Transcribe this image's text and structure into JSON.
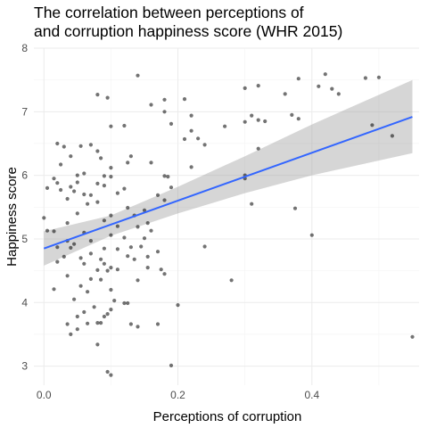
{
  "chart_data": {
    "type": "scatter",
    "title_lines": [
      "The correlation between perceptions of",
      "and corruption happiness score (WHR 2015)"
    ],
    "xlabel": "Perceptions of corruption",
    "ylabel": "Happiness score",
    "xlim": [
      -0.015,
      0.56
    ],
    "ylim": [
      2.7,
      8.0
    ],
    "x_ticks": [
      0.0,
      0.2,
      0.4
    ],
    "x_tick_labels": [
      "0.0",
      "0.2",
      "0.4"
    ],
    "y_ticks": [
      3,
      4,
      5,
      6,
      7,
      8
    ],
    "y_tick_labels": [
      "3",
      "4",
      "5",
      "6",
      "7",
      "8"
    ],
    "grid": true,
    "colors": {
      "points": "#000000",
      "fit_line": "#3366ff",
      "confidence_band": "#999999",
      "grid": "#ebebeb"
    },
    "fit": {
      "method": "linear",
      "line": [
        [
          0.0,
          4.85
        ],
        [
          0.55,
          6.92
        ]
      ],
      "band": [
        {
          "x": 0.0,
          "lo": 4.58,
          "hi": 5.12
        },
        {
          "x": 0.1,
          "lo": 5.05,
          "hi": 5.37
        },
        {
          "x": 0.2,
          "lo": 5.4,
          "hi": 5.82
        },
        {
          "x": 0.3,
          "lo": 5.72,
          "hi": 6.3
        },
        {
          "x": 0.4,
          "lo": 6.0,
          "hi": 6.8
        },
        {
          "x": 0.55,
          "lo": 6.35,
          "hi": 7.5
        }
      ]
    },
    "points": [
      [
        0.5,
        7.54
      ],
      [
        0.38,
        7.52
      ],
      [
        0.42,
        7.59
      ],
      [
        0.48,
        7.53
      ],
      [
        0.3,
        7.37
      ],
      [
        0.32,
        7.41
      ],
      [
        0.41,
        7.4
      ],
      [
        0.36,
        7.28
      ],
      [
        0.43,
        7.36
      ],
      [
        0.44,
        7.28
      ],
      [
        0.14,
        7.57
      ],
      [
        0.18,
        7.19
      ],
      [
        0.21,
        7.2
      ],
      [
        0.18,
        7.0
      ],
      [
        0.16,
        7.11
      ],
      [
        0.08,
        7.27
      ],
      [
        0.095,
        7.22
      ],
      [
        0.22,
        6.94
      ],
      [
        0.31,
        6.94
      ],
      [
        0.37,
        6.95
      ],
      [
        0.38,
        6.89
      ],
      [
        0.32,
        6.87
      ],
      [
        0.33,
        6.85
      ],
      [
        0.3,
        6.84
      ],
      [
        0.49,
        6.79
      ],
      [
        0.52,
        6.62
      ],
      [
        0.1,
        6.77
      ],
      [
        0.12,
        6.78
      ],
      [
        0.22,
        6.7
      ],
      [
        0.23,
        6.58
      ],
      [
        0.21,
        6.57
      ],
      [
        0.19,
        6.81
      ],
      [
        0.27,
        6.77
      ],
      [
        0.24,
        6.48
      ],
      [
        0.32,
        6.42
      ],
      [
        0.02,
        6.5
      ],
      [
        0.03,
        6.45
      ],
      [
        0.055,
        6.46
      ],
      [
        0.07,
        6.48
      ],
      [
        0.13,
        6.3
      ],
      [
        0.08,
        6.38
      ],
      [
        0.085,
        6.27
      ],
      [
        0.1,
        6.12
      ],
      [
        0.125,
        6.2
      ],
      [
        0.04,
        6.3
      ],
      [
        0.16,
        6.2
      ],
      [
        0.22,
        6.13
      ],
      [
        0.025,
        6.17
      ],
      [
        0.05,
        6.0
      ],
      [
        0.09,
        5.99
      ],
      [
        0.1,
        5.98
      ],
      [
        0.06,
        6.03
      ],
      [
        0.18,
        5.99
      ],
      [
        0.185,
        5.98
      ],
      [
        0.3,
        6.0
      ],
      [
        0.3,
        5.95
      ],
      [
        0.015,
        5.95
      ],
      [
        0.02,
        5.88
      ],
      [
        0.05,
        5.89
      ],
      [
        0.08,
        5.87
      ],
      [
        0.09,
        5.84
      ],
      [
        0.04,
        5.82
      ],
      [
        0.12,
        5.79
      ],
      [
        0.19,
        5.81
      ],
      [
        0.005,
        5.8
      ],
      [
        0.025,
        5.77
      ],
      [
        0.045,
        5.75
      ],
      [
        0.06,
        5.7
      ],
      [
        0.11,
        5.72
      ],
      [
        0.07,
        5.69
      ],
      [
        0.17,
        5.69
      ],
      [
        0.18,
        5.61
      ],
      [
        0.035,
        5.63
      ],
      [
        0.08,
        5.58
      ],
      [
        0.065,
        5.55
      ],
      [
        0.125,
        5.49
      ],
      [
        0.15,
        5.45
      ],
      [
        0.31,
        5.55
      ],
      [
        0.375,
        5.48
      ],
      [
        0.05,
        5.4
      ],
      [
        0.1,
        5.37
      ],
      [
        0.135,
        5.37
      ],
      [
        0.0,
        5.33
      ],
      [
        0.09,
        5.29
      ],
      [
        0.155,
        5.25
      ],
      [
        0.035,
        5.25
      ],
      [
        0.11,
        5.2
      ],
      [
        0.14,
        5.19
      ],
      [
        0.16,
        5.13
      ],
      [
        0.005,
        5.13
      ],
      [
        0.015,
        5.12
      ],
      [
        0.06,
        5.1
      ],
      [
        0.1,
        5.06
      ],
      [
        0.12,
        5.02
      ],
      [
        0.15,
        5.01
      ],
      [
        0.07,
        4.97
      ],
      [
        0.4,
        5.06
      ],
      [
        0.035,
        4.97
      ],
      [
        0.045,
        4.92
      ],
      [
        0.13,
        4.87
      ],
      [
        0.145,
        4.88
      ],
      [
        0.24,
        4.88
      ],
      [
        0.02,
        4.87
      ],
      [
        0.04,
        4.86
      ],
      [
        0.09,
        4.85
      ],
      [
        0.11,
        4.84
      ],
      [
        0.17,
        4.8
      ],
      [
        0.07,
        4.77
      ],
      [
        0.125,
        4.73
      ],
      [
        0.155,
        4.72
      ],
      [
        0.03,
        4.72
      ],
      [
        0.055,
        4.7
      ],
      [
        0.085,
        4.68
      ],
      [
        0.135,
        4.68
      ],
      [
        0.02,
        4.64
      ],
      [
        0.06,
        4.61
      ],
      [
        0.09,
        4.61
      ],
      [
        0.1,
        4.55
      ],
      [
        0.11,
        4.52
      ],
      [
        0.155,
        4.55
      ],
      [
        0.175,
        4.52
      ],
      [
        0.08,
        4.51
      ],
      [
        0.095,
        4.5
      ],
      [
        0.18,
        4.45
      ],
      [
        0.035,
        4.42
      ],
      [
        0.07,
        4.37
      ],
      [
        0.085,
        4.36
      ],
      [
        0.14,
        4.35
      ],
      [
        0.28,
        4.35
      ],
      [
        0.015,
        4.21
      ],
      [
        0.055,
        4.26
      ],
      [
        0.1,
        4.2
      ],
      [
        0.065,
        4.17
      ],
      [
        0.045,
        4.05
      ],
      [
        0.105,
        4.03
      ],
      [
        0.12,
        3.99
      ],
      [
        0.125,
        3.99
      ],
      [
        0.2,
        3.96
      ],
      [
        0.075,
        3.93
      ],
      [
        0.1,
        3.89
      ],
      [
        0.06,
        3.85
      ],
      [
        0.09,
        3.78
      ],
      [
        0.095,
        3.82
      ],
      [
        0.05,
        3.78
      ],
      [
        0.065,
        3.67
      ],
      [
        0.08,
        3.68
      ],
      [
        0.085,
        3.68
      ],
      [
        0.13,
        3.66
      ],
      [
        0.14,
        3.62
      ],
      [
        0.035,
        3.66
      ],
      [
        0.17,
        3.66
      ],
      [
        0.05,
        3.58
      ],
      [
        0.04,
        3.5
      ],
      [
        0.08,
        3.34
      ],
      [
        0.55,
        3.46
      ],
      [
        0.19,
        3.01
      ],
      [
        0.095,
        2.91
      ],
      [
        0.1,
        2.86
      ]
    ]
  }
}
